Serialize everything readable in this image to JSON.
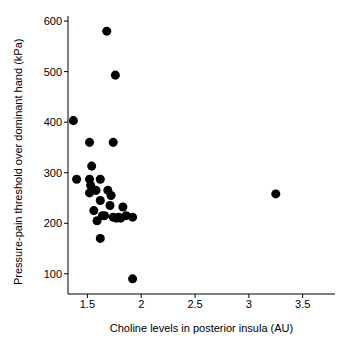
{
  "chart_data": {
    "type": "scatter",
    "x_label": "Choline levels in posterior insula (AU)",
    "y_label": "Pressure-pain threshold over dominant hand (kPa)",
    "x": [
      1.37,
      1.4,
      1.52,
      1.52,
      1.53,
      1.54,
      1.52,
      1.56,
      1.58,
      1.59,
      1.62,
      1.62,
      1.62,
      1.64,
      1.66,
      1.68,
      1.69,
      1.71,
      1.72,
      1.74,
      1.74,
      1.76,
      1.77,
      1.79,
      1.81,
      1.83,
      1.86,
      1.92,
      1.92,
      3.25
    ],
    "values": [
      403,
      287,
      360,
      287,
      275,
      313,
      260,
      225,
      265,
      205,
      170,
      287,
      245,
      215,
      215,
      580,
      265,
      235,
      255,
      212,
      360,
      493,
      210,
      212,
      210,
      232,
      215,
      212,
      90,
      258
    ],
    "color": "#000000",
    "marker": "circle",
    "xlim": [
      1.32,
      3.8
    ],
    "ylim": [
      60,
      610
    ],
    "xticks": [
      1.5,
      2,
      2.5,
      3,
      3.5
    ],
    "yticks": [
      100,
      200,
      300,
      400,
      500,
      600
    ],
    "grid": false
  }
}
